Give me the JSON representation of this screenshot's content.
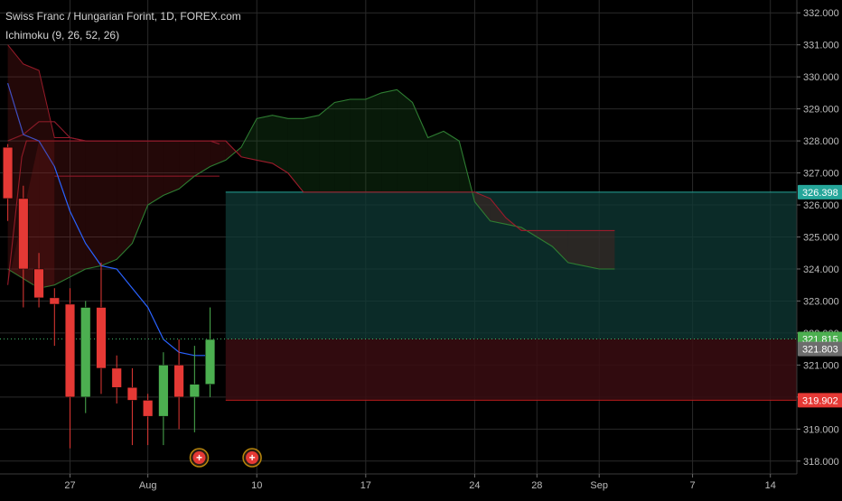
{
  "header": {
    "title": "Swiss Franc / Hungarian Forint, 1D, FOREX.com",
    "indicator": "Ichimoku (9, 26, 52, 26)"
  },
  "colors": {
    "background": "#000000",
    "grid": "#2a2a2a",
    "up": "#4caf50",
    "down": "#e53935",
    "tenkan": "#2962ff",
    "kijun": "#8b1a2a",
    "span_a": "#2e7d32",
    "span_b": "#9b1b2b",
    "target_zone": "#0f3a35",
    "stop_zone": "#3a0d12",
    "price_line": "#3fb36a"
  },
  "chart_data": {
    "type": "candlestick",
    "symbol": "Swiss Franc / Hungarian Forint",
    "interval": "1D",
    "source": "FOREX.com",
    "y_axis": {
      "ticks": [
        "332.000",
        "331.000",
        "330.000",
        "329.000",
        "328.000",
        "327.000",
        "326.000",
        "325.000",
        "324.000",
        "323.000",
        "322.000",
        "321.000",
        "320.000",
        "319.000",
        "318.000"
      ],
      "ylim": [
        317.6,
        332.4
      ]
    },
    "x_axis": {
      "ticks": [
        {
          "label": "27",
          "index": 4
        },
        {
          "label": "Aug",
          "index": 9
        },
        {
          "label": "10",
          "index": 16
        },
        {
          "label": "17",
          "index": 23
        },
        {
          "label": "24",
          "index": 30
        },
        {
          "label": "28",
          "index": 34
        },
        {
          "label": "Sep",
          "index": 38
        },
        {
          "label": "7",
          "index": 44
        },
        {
          "label": "14",
          "index": 49
        }
      ],
      "range": [
        -0.5,
        50.7
      ]
    },
    "candles": [
      {
        "i": 0,
        "open": 327.8,
        "high": 327.9,
        "low": 325.5,
        "close": 326.2
      },
      {
        "i": 1,
        "open": 326.2,
        "high": 326.6,
        "low": 322.8,
        "close": 324.0
      },
      {
        "i": 2,
        "open": 324.0,
        "high": 324.5,
        "low": 322.8,
        "close": 323.1
      },
      {
        "i": 3,
        "open": 323.1,
        "high": 323.4,
        "low": 321.6,
        "close": 322.9
      },
      {
        "i": 4,
        "open": 322.9,
        "high": 323.4,
        "low": 318.4,
        "close": 320.0
      },
      {
        "i": 5,
        "open": 320.0,
        "high": 323.0,
        "low": 319.5,
        "close": 322.8
      },
      {
        "i": 6,
        "open": 322.8,
        "high": 324.2,
        "low": 320.1,
        "close": 320.9
      },
      {
        "i": 7,
        "open": 320.9,
        "high": 321.3,
        "low": 319.8,
        "close": 320.3
      },
      {
        "i": 8,
        "open": 320.3,
        "high": 320.9,
        "low": 318.5,
        "close": 319.9
      },
      {
        "i": 9,
        "open": 319.9,
        "high": 320.1,
        "low": 318.5,
        "close": 319.4
      },
      {
        "i": 10,
        "open": 319.4,
        "high": 321.4,
        "low": 318.5,
        "close": 321.0
      },
      {
        "i": 11,
        "open": 321.0,
        "high": 321.8,
        "low": 319.0,
        "close": 320.0
      },
      {
        "i": 12,
        "open": 320.0,
        "high": 321.6,
        "low": 318.9,
        "close": 320.4
      },
      {
        "i": 13,
        "open": 320.4,
        "high": 322.8,
        "low": 320.0,
        "close": 321.8
      }
    ],
    "tenkan": [
      [
        0,
        329.8
      ],
      [
        1,
        328.2
      ],
      [
        2,
        328.0
      ],
      [
        3,
        327.2
      ],
      [
        4,
        325.8
      ],
      [
        5,
        324.8
      ],
      [
        6,
        324.1
      ],
      [
        7,
        324.0
      ],
      [
        8,
        323.4
      ],
      [
        9,
        322.8
      ],
      [
        10,
        321.8
      ],
      [
        11,
        321.4
      ],
      [
        12,
        321.3
      ],
      [
        13,
        321.3
      ]
    ],
    "kijun": [
      [
        0,
        328.0
      ],
      [
        1,
        328.2
      ],
      [
        2,
        328.6
      ],
      [
        3,
        328.6
      ],
      [
        4,
        328.1
      ],
      [
        5,
        328.0
      ],
      [
        6,
        328.0
      ],
      [
        7,
        328.0
      ],
      [
        8,
        328.0
      ],
      [
        9,
        328.0
      ],
      [
        10,
        328.0
      ],
      [
        11,
        328.0
      ],
      [
        12,
        328.0
      ],
      [
        13,
        328.0
      ],
      [
        13.6,
        327.9
      ]
    ],
    "lagging_span": [
      [
        0,
        331.0
      ],
      [
        1,
        330.4
      ],
      [
        2,
        330.2
      ],
      [
        3,
        328.1
      ],
      [
        4,
        328.1
      ],
      [
        5,
        328.0
      ],
      [
        6,
        328.0
      ],
      [
        7,
        328.0
      ],
      [
        8,
        328.0
      ],
      [
        9,
        328.0
      ],
      [
        10,
        328.0
      ],
      [
        11,
        328.0
      ],
      [
        12,
        328.0
      ]
    ],
    "kumo_past": [
      [
        3,
        326.9,
        326.9
      ],
      [
        4,
        326.9,
        326.9
      ],
      [
        6,
        326.9,
        326.9
      ],
      [
        8,
        326.9,
        326.9
      ],
      [
        10,
        326.9,
        326.9
      ],
      [
        12,
        326.9,
        326.9
      ],
      [
        13.6,
        326.9,
        326.9
      ]
    ],
    "senkou_a": [
      [
        0,
        324.0
      ],
      [
        2,
        323.4
      ],
      [
        3,
        323.5
      ],
      [
        5,
        324.0
      ],
      [
        6,
        324.1
      ],
      [
        7,
        324.3
      ],
      [
        8,
        324.8
      ],
      [
        9,
        326.0
      ],
      [
        10,
        326.3
      ],
      [
        11,
        326.5
      ],
      [
        12,
        326.9
      ],
      [
        13,
        327.2
      ],
      [
        14,
        327.4
      ],
      [
        15,
        327.8
      ],
      [
        16,
        328.7
      ],
      [
        17,
        328.8
      ],
      [
        18,
        328.7
      ],
      [
        19,
        328.7
      ],
      [
        20,
        328.8
      ],
      [
        21,
        329.2
      ],
      [
        22,
        329.3
      ],
      [
        23,
        329.3
      ],
      [
        24,
        329.5
      ],
      [
        25,
        329.6
      ],
      [
        26,
        329.2
      ],
      [
        27,
        328.1
      ],
      [
        28,
        328.3
      ],
      [
        29,
        328.0
      ],
      [
        30,
        326.1
      ],
      [
        31,
        325.5
      ],
      [
        32,
        325.4
      ],
      [
        33,
        325.3
      ],
      [
        34,
        325.0
      ],
      [
        35,
        324.7
      ],
      [
        36,
        324.2
      ],
      [
        37,
        324.1
      ],
      [
        38,
        324.0
      ],
      [
        39,
        324.0
      ]
    ],
    "senkou_b": [
      [
        0,
        323.5
      ],
      [
        0.9,
        327.5
      ],
      [
        1.2,
        328.0
      ],
      [
        2,
        328.0
      ],
      [
        14,
        328.0
      ],
      [
        15,
        327.5
      ],
      [
        16,
        327.4
      ],
      [
        17,
        327.3
      ],
      [
        18,
        327.0
      ],
      [
        19,
        326.4
      ],
      [
        20,
        326.4
      ],
      [
        24,
        326.4
      ],
      [
        29,
        326.4
      ],
      [
        30,
        326.4
      ],
      [
        31,
        326.2
      ],
      [
        32,
        325.6
      ],
      [
        33,
        325.2
      ],
      [
        34,
        325.2
      ],
      [
        35,
        325.2
      ],
      [
        36,
        325.2
      ],
      [
        37,
        325.2
      ],
      [
        38,
        325.2
      ],
      [
        39,
        325.2
      ]
    ],
    "position": {
      "entry": 321.815,
      "target": 326.398,
      "stop": 319.902,
      "from_index": 14,
      "to_index": 50.7
    },
    "current_price": 321.815,
    "price_labels": [
      {
        "value": "326.398",
        "y": 326.398,
        "color": "#26a69a"
      },
      {
        "value": "321.815",
        "y": 321.815,
        "color": "#4caf50"
      },
      {
        "value": "321.803",
        "y": 321.5,
        "color": "#6d6d6d"
      },
      {
        "value": "319.902",
        "y": 319.902,
        "color": "#e53935"
      }
    ],
    "events": [
      {
        "index": 12.3,
        "symbol": "+"
      },
      {
        "index": 15.7,
        "symbol": "+"
      }
    ]
  }
}
